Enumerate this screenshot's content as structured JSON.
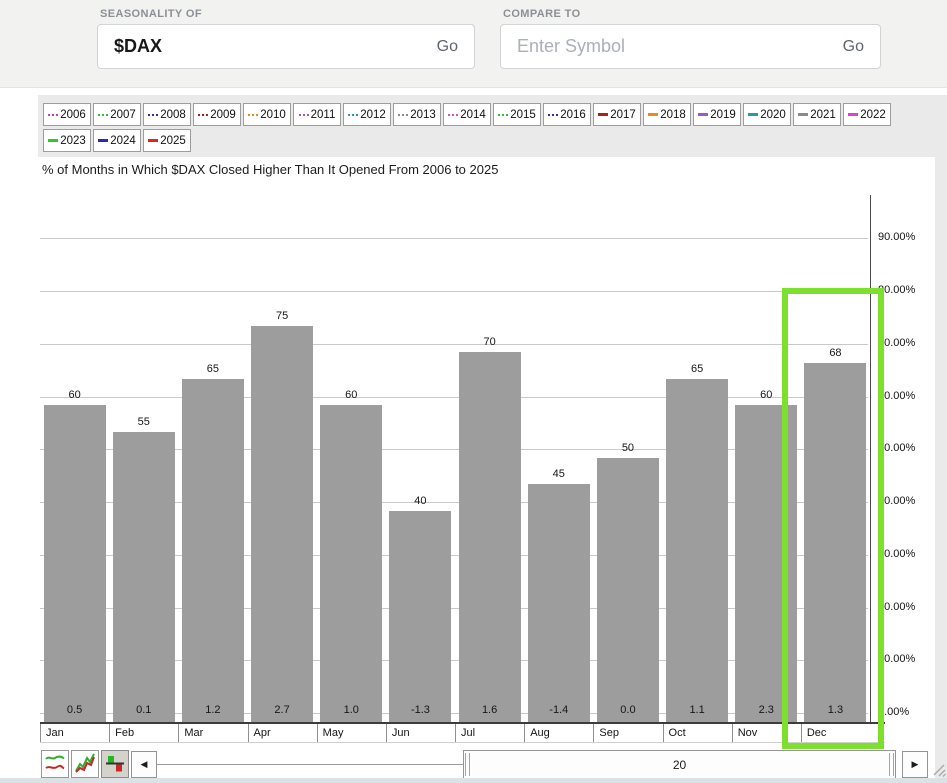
{
  "header": {
    "seasonality_label": "SEASONALITY OF",
    "symbol_value": "$DAX",
    "symbol_go": "Go",
    "compare_label": "COMPARE TO",
    "compare_placeholder": "Enter Symbol",
    "compare_go": "Go"
  },
  "legend": {
    "years": [
      {
        "label": "2006",
        "color": "#c93fc9",
        "style": "dotted"
      },
      {
        "label": "2007",
        "color": "#3cb83c",
        "style": "dotted"
      },
      {
        "label": "2008",
        "color": "#3434a8",
        "style": "dotted"
      },
      {
        "label": "2009",
        "color": "#a32222",
        "style": "dotted"
      },
      {
        "label": "2010",
        "color": "#ea8822",
        "style": "dotted"
      },
      {
        "label": "2011",
        "color": "#9a59cc",
        "style": "dotted"
      },
      {
        "label": "2012",
        "color": "#2a9aa8",
        "style": "dotted"
      },
      {
        "label": "2013",
        "color": "#8a8a8a",
        "style": "dotted"
      },
      {
        "label": "2014",
        "color": "#da55bb",
        "style": "dotted"
      },
      {
        "label": "2015",
        "color": "#3cb83c",
        "style": "dotted"
      },
      {
        "label": "2016",
        "color": "#3434a8",
        "style": "dotted"
      },
      {
        "label": "2017",
        "color": "#a32222",
        "style": "solid"
      },
      {
        "label": "2018",
        "color": "#ea8822",
        "style": "solid"
      },
      {
        "label": "2019",
        "color": "#9a59cc",
        "style": "solid"
      },
      {
        "label": "2020",
        "color": "#2a9aa8",
        "style": "solid"
      },
      {
        "label": "2021",
        "color": "#8a8a8a",
        "style": "solid"
      },
      {
        "label": "2022",
        "color": "#da44cc",
        "style": "solid"
      },
      {
        "label": "2023",
        "color": "#28cc28",
        "style": "solid"
      },
      {
        "label": "2024",
        "color": "#2a2ab8",
        "style": "solid"
      },
      {
        "label": "2025",
        "color": "#e82222",
        "style": "solid"
      }
    ]
  },
  "chart_data": {
    "type": "bar",
    "title": "% of Months in Which $DAX Closed Higher Than It Opened From 2006 to 2025",
    "categories": [
      "Jan",
      "Feb",
      "Mar",
      "Apr",
      "May",
      "Jun",
      "Jul",
      "Aug",
      "Sep",
      "Oct",
      "Nov",
      "Dec"
    ],
    "series": [
      {
        "name": "pct_months_closed_higher",
        "values": [
          60,
          55,
          65,
          75,
          60,
          40,
          70,
          45,
          50,
          65,
          60,
          68
        ],
        "labels": [
          "60",
          "55",
          "65",
          "75",
          "60",
          "40",
          "70",
          "45",
          "50",
          "65",
          "60",
          "68"
        ]
      },
      {
        "name": "avg_pct_change",
        "values": [
          0.5,
          0.1,
          1.2,
          2.7,
          1.0,
          -1.3,
          1.6,
          -1.4,
          0.0,
          1.1,
          2.3,
          1.3
        ],
        "labels": [
          "0.5",
          "0.1",
          "1.2",
          "2.7",
          "1.0",
          "-1.3",
          "1.6",
          "-1.4",
          "0.0",
          "1.1",
          "2.3",
          "1.3"
        ]
      }
    ],
    "y_ticks": [
      "0.00%",
      "10.00%",
      "20.00%",
      "30.00%",
      "40.00%",
      "50.00%",
      "60.00%",
      "70.00%",
      "80.00%",
      "90.00%"
    ],
    "ylim": [
      0,
      100
    ],
    "grid": true,
    "legend_position": "top",
    "bar_color": "#9d9d9d",
    "highlight": {
      "category": "Dec",
      "color": "#7de02e"
    }
  },
  "toolbar": {
    "scrollbar_value": "20"
  }
}
